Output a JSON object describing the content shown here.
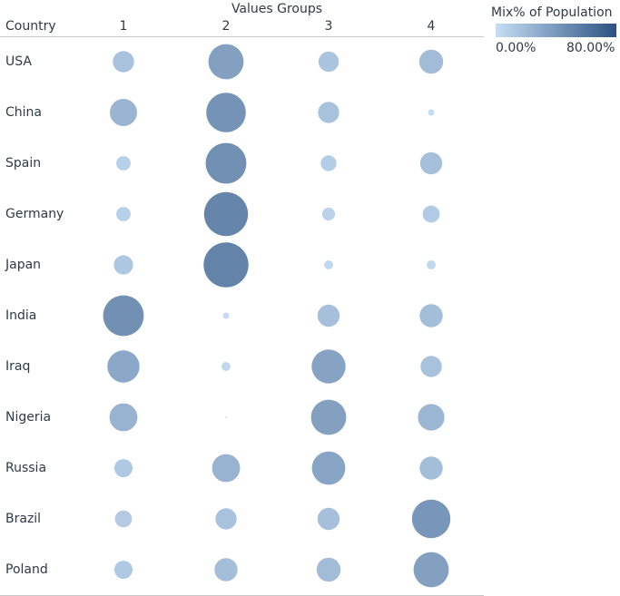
{
  "chart_data": {
    "type": "scatter",
    "title": "",
    "column_group_title": "Values Groups",
    "row_header": "Country",
    "columns": [
      "1",
      "2",
      "3",
      "4"
    ],
    "rows": [
      "USA",
      "China",
      "Spain",
      "Germany",
      "Japan",
      "India",
      "Iraq",
      "Nigeria",
      "Russia",
      "Brazil",
      "Poland"
    ],
    "size_and_color_measure": "Mix% of Population",
    "values": [
      [
        11,
        30,
        10,
        14
      ],
      [
        18,
        38,
        11,
        1
      ],
      [
        5,
        40,
        6,
        12
      ],
      [
        5,
        47,
        4,
        7
      ],
      [
        9,
        49,
        2,
        2
      ],
      [
        40,
        1,
        12,
        13
      ],
      [
        25,
        2,
        28,
        11
      ],
      [
        19,
        0,
        30,
        17
      ],
      [
        8,
        19,
        27,
        13
      ],
      [
        7,
        11,
        12,
        36
      ],
      [
        8,
        13,
        14,
        30
      ]
    ],
    "legend": {
      "title": "Mix% of Population",
      "min_label": "0.00%",
      "max_label": "80.00%",
      "placement": "top-right"
    },
    "colors": {
      "low": "#c5def5",
      "high": "#2c5282",
      "text": "#2f3a45",
      "rule": "#c8c8c8"
    }
  }
}
